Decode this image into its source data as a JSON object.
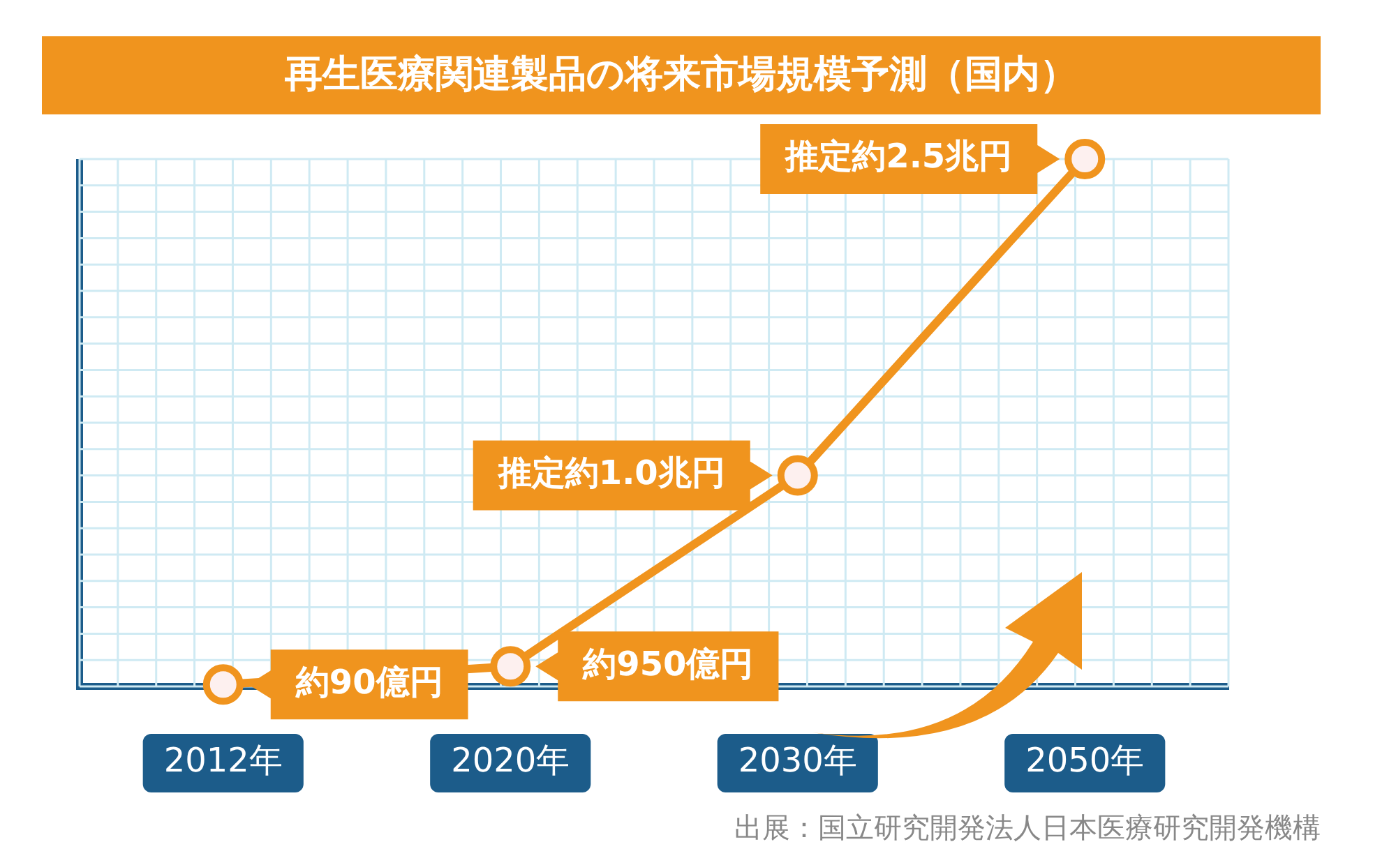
{
  "chart_data": {
    "type": "line",
    "title": "再生医療関連製品の将来市場規模予測（国内）",
    "categories": [
      "2012年",
      "2020年",
      "2030年",
      "2050年"
    ],
    "series": [
      {
        "color": "#f0941e",
        "values": [
          90,
          950,
          10000,
          25000
        ],
        "value_labels": [
          "約90億円",
          "約950億円",
          "推定約1.0兆円",
          "推定約2.5兆円"
        ]
      }
    ],
    "marker": "circle",
    "grid": true,
    "legend": false,
    "annotations": [
      "出展：国立研究開発法人日本医療研究開発機構"
    ]
  }
}
